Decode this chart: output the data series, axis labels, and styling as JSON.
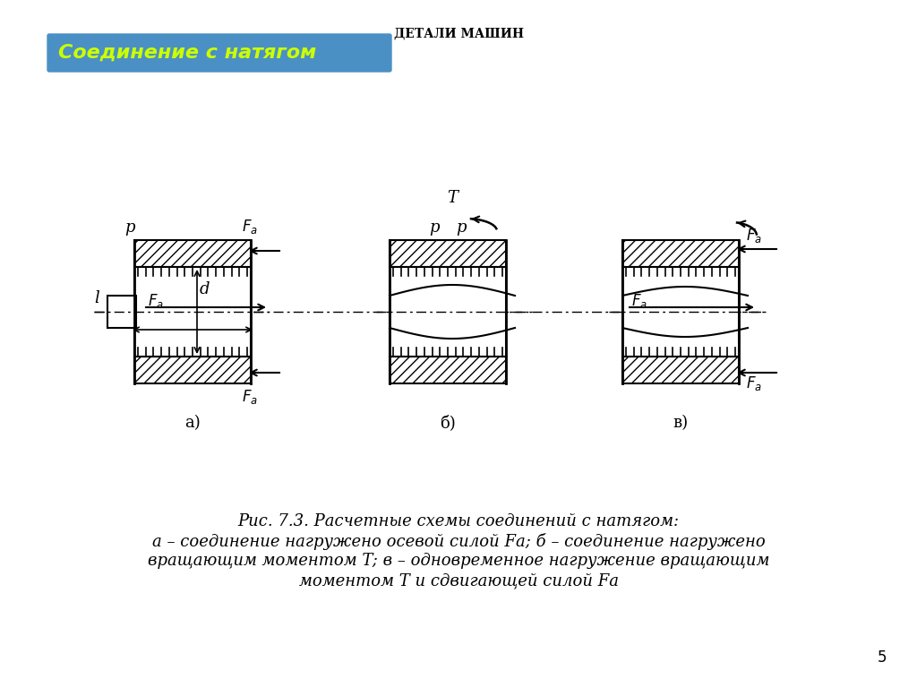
{
  "title": "ДЕТАЛИ МАШИН",
  "header_text": "Соединение с натягом",
  "header_bg": "#4a90c4",
  "header_text_color": "#ccff00",
  "bg_color": "#ffffff",
  "caption_line1": "Рис. 7.3. Расчетные схемы соединений с натягом:",
  "caption_line2": "а – соединение нагружено осевой силой Fа; б – соединение нагружено",
  "caption_line3": "вращающим моментом T; в – одновременное нагружение вращающим",
  "caption_line4": "моментом T и сдвигающей силой Fа",
  "page_number": "5",
  "labels_a": {
    "p": "p",
    "Fa_top": "F_a",
    "Fa_mid": "F_a",
    "Fa_bot": "F_a",
    "l": "l",
    "d": "d"
  },
  "labels_b": {
    "T": "T",
    "p_left": "p",
    "p_right": "p"
  },
  "labels_c": {
    "Fa_top": "F_a",
    "Fa_mid": "F_a",
    "Fa_bot": "F_a"
  },
  "sublabels": [
    "а)",
    "б)",
    "в)"
  ]
}
